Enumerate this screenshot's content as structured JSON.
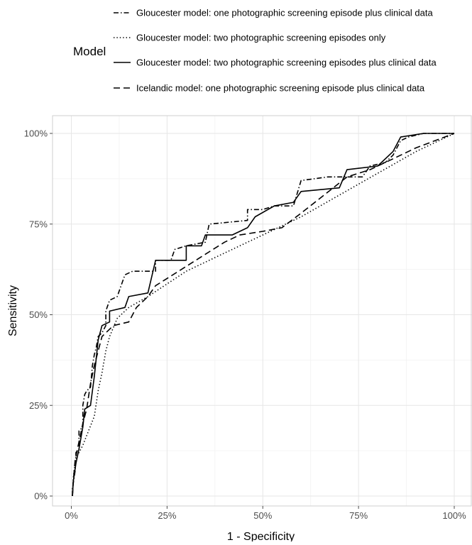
{
  "legend": {
    "title": "Model"
  },
  "chart_data": {
    "type": "line",
    "title": "",
    "xlabel": "1 - Specificity",
    "ylabel": "Sensitivity",
    "xlim": [
      0,
      1
    ],
    "ylim": [
      0,
      1
    ],
    "grid": true,
    "legend_position": "top",
    "x_ticks": [
      0,
      0.25,
      0.5,
      0.75,
      1
    ],
    "x_tick_labels": [
      "0%",
      "25%",
      "50%",
      "75%",
      "100%"
    ],
    "y_ticks": [
      0,
      0.25,
      0.5,
      0.75,
      1
    ],
    "y_tick_labels": [
      "0%",
      "25%",
      "50%",
      "75%",
      "100%"
    ],
    "series": [
      {
        "name": "Gloucester model: one photographic screening episode plus clinical data",
        "line_style": "dashdot",
        "points": [
          [
            0.003,
            0.0
          ],
          [
            0.003,
            0.02
          ],
          [
            0.01,
            0.07
          ],
          [
            0.012,
            0.12
          ],
          [
            0.02,
            0.13
          ],
          [
            0.02,
            0.18
          ],
          [
            0.03,
            0.19
          ],
          [
            0.03,
            0.25
          ],
          [
            0.035,
            0.28
          ],
          [
            0.04,
            0.29
          ],
          [
            0.05,
            0.3
          ],
          [
            0.055,
            0.36
          ],
          [
            0.06,
            0.39
          ],
          [
            0.065,
            0.41
          ],
          [
            0.07,
            0.44
          ],
          [
            0.08,
            0.45
          ],
          [
            0.09,
            0.47
          ],
          [
            0.09,
            0.51
          ],
          [
            0.1,
            0.54
          ],
          [
            0.12,
            0.55
          ],
          [
            0.13,
            0.58
          ],
          [
            0.14,
            0.61
          ],
          [
            0.16,
            0.62
          ],
          [
            0.22,
            0.62
          ],
          [
            0.22,
            0.65
          ],
          [
            0.26,
            0.65
          ],
          [
            0.27,
            0.68
          ],
          [
            0.3,
            0.69
          ],
          [
            0.35,
            0.7
          ],
          [
            0.36,
            0.75
          ],
          [
            0.46,
            0.76
          ],
          [
            0.46,
            0.79
          ],
          [
            0.5,
            0.79
          ],
          [
            0.53,
            0.8
          ],
          [
            0.58,
            0.8
          ],
          [
            0.6,
            0.87
          ],
          [
            0.67,
            0.88
          ],
          [
            0.76,
            0.88
          ],
          [
            0.78,
            0.91
          ],
          [
            0.82,
            0.92
          ],
          [
            0.84,
            0.94
          ],
          [
            0.86,
            0.98
          ],
          [
            0.88,
            0.99
          ],
          [
            0.92,
            1.0
          ],
          [
            1.0,
            1.0
          ]
        ]
      },
      {
        "name": "Gloucester model: two photographic screening episodes only",
        "line_style": "dotted",
        "points": [
          [
            0.003,
            0.0
          ],
          [
            0.005,
            0.05
          ],
          [
            0.01,
            0.09
          ],
          [
            0.015,
            0.11
          ],
          [
            0.03,
            0.14
          ],
          [
            0.045,
            0.18
          ],
          [
            0.06,
            0.22
          ],
          [
            0.07,
            0.29
          ],
          [
            0.08,
            0.34
          ],
          [
            0.09,
            0.4
          ],
          [
            0.1,
            0.44
          ],
          [
            0.12,
            0.49
          ],
          [
            0.15,
            0.52
          ],
          [
            0.2,
            0.55
          ],
          [
            0.3,
            0.62
          ],
          [
            0.4,
            0.67
          ],
          [
            0.5,
            0.72
          ],
          [
            0.6,
            0.77
          ],
          [
            0.7,
            0.83
          ],
          [
            0.8,
            0.89
          ],
          [
            0.9,
            0.95
          ],
          [
            1.0,
            1.0
          ]
        ]
      },
      {
        "name": "Gloucester model: two photographic screening episodes plus clinical data",
        "line_style": "solid",
        "points": [
          [
            0.003,
            0.0
          ],
          [
            0.005,
            0.04
          ],
          [
            0.012,
            0.09
          ],
          [
            0.02,
            0.13
          ],
          [
            0.025,
            0.16
          ],
          [
            0.03,
            0.19
          ],
          [
            0.035,
            0.24
          ],
          [
            0.05,
            0.25
          ],
          [
            0.055,
            0.29
          ],
          [
            0.06,
            0.33
          ],
          [
            0.065,
            0.38
          ],
          [
            0.07,
            0.43
          ],
          [
            0.08,
            0.47
          ],
          [
            0.1,
            0.48
          ],
          [
            0.1,
            0.51
          ],
          [
            0.14,
            0.52
          ],
          [
            0.15,
            0.55
          ],
          [
            0.2,
            0.56
          ],
          [
            0.22,
            0.65
          ],
          [
            0.3,
            0.65
          ],
          [
            0.3,
            0.69
          ],
          [
            0.34,
            0.69
          ],
          [
            0.35,
            0.72
          ],
          [
            0.42,
            0.72
          ],
          [
            0.46,
            0.74
          ],
          [
            0.48,
            0.77
          ],
          [
            0.53,
            0.8
          ],
          [
            0.58,
            0.81
          ],
          [
            0.6,
            0.84
          ],
          [
            0.7,
            0.85
          ],
          [
            0.72,
            0.9
          ],
          [
            0.8,
            0.91
          ],
          [
            0.84,
            0.95
          ],
          [
            0.86,
            0.99
          ],
          [
            0.92,
            1.0
          ],
          [
            1.0,
            1.0
          ]
        ]
      },
      {
        "name": "Icelandic model: one photographic screening episode plus clinical data",
        "line_style": "dashed",
        "points": [
          [
            0.003,
            0.0
          ],
          [
            0.005,
            0.04
          ],
          [
            0.01,
            0.1
          ],
          [
            0.02,
            0.15
          ],
          [
            0.03,
            0.2
          ],
          [
            0.04,
            0.24
          ],
          [
            0.05,
            0.31
          ],
          [
            0.06,
            0.36
          ],
          [
            0.07,
            0.4
          ],
          [
            0.08,
            0.44
          ],
          [
            0.09,
            0.45
          ],
          [
            0.11,
            0.47
          ],
          [
            0.15,
            0.48
          ],
          [
            0.17,
            0.52
          ],
          [
            0.2,
            0.55
          ],
          [
            0.22,
            0.58
          ],
          [
            0.28,
            0.62
          ],
          [
            0.34,
            0.66
          ],
          [
            0.4,
            0.7
          ],
          [
            0.44,
            0.72
          ],
          [
            0.5,
            0.73
          ],
          [
            0.55,
            0.74
          ],
          [
            0.6,
            0.78
          ],
          [
            0.66,
            0.83
          ],
          [
            0.72,
            0.88
          ],
          [
            0.78,
            0.9
          ],
          [
            0.84,
            0.93
          ],
          [
            0.9,
            0.96
          ],
          [
            1.0,
            1.0
          ]
        ]
      }
    ]
  }
}
